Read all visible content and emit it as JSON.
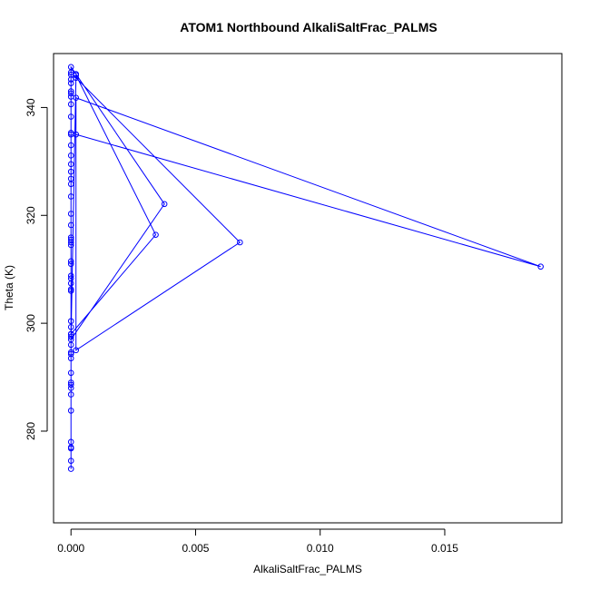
{
  "chart_data": {
    "type": "scatter",
    "title": "ATOM1 Northbound AlkaliSaltFrac_PALMS",
    "xlabel": "AlkaliSaltFrac_PALMS",
    "ylabel": "Theta (K)",
    "xlim": [
      -0.0007,
      0.0197
    ],
    "ylim": [
      263,
      350
    ],
    "x_ticks": [
      0.0,
      0.005,
      0.01,
      0.015
    ],
    "x_tick_labels": [
      "0.000",
      "0.005",
      "0.010",
      "0.015"
    ],
    "y_ticks": [
      280,
      300,
      320,
      340
    ],
    "y_tick_labels": [
      "280",
      "300",
      "320",
      "340"
    ],
    "grid": false,
    "legend": "none",
    "series": [
      {
        "color": "#0000ff",
        "marker": "open-circle",
        "line": true,
        "points": [
          [
            0,
            274.5
          ],
          [
            0,
            273.0
          ],
          [
            0,
            276.8
          ],
          [
            0,
            277.0
          ],
          [
            0,
            278.0
          ],
          [
            0,
            283.8
          ],
          [
            0,
            286.8
          ],
          [
            0,
            288.0
          ],
          [
            0,
            288.6
          ],
          [
            0,
            289.0
          ],
          [
            0,
            290.8
          ],
          [
            0,
            293.5
          ],
          [
            0,
            294.3
          ],
          [
            0,
            294.6
          ],
          [
            0,
            296.0
          ],
          [
            0,
            297.5
          ],
          [
            0,
            298.0
          ],
          [
            0,
            299.3
          ],
          [
            0,
            300.4
          ],
          [
            0,
            306.0
          ],
          [
            0,
            306.3
          ],
          [
            0,
            307.4
          ],
          [
            0,
            308.3
          ],
          [
            0,
            308.8
          ],
          [
            0,
            311.0
          ],
          [
            0,
            311.5
          ],
          [
            0,
            314.5
          ],
          [
            0,
            315.0
          ],
          [
            0,
            315.5
          ],
          [
            0,
            315.9
          ],
          [
            0,
            318.2
          ],
          [
            0,
            320.3
          ],
          [
            0,
            323.5
          ],
          [
            0,
            325.8
          ],
          [
            0,
            326.8
          ],
          [
            0,
            328.1
          ],
          [
            0,
            329.5
          ],
          [
            0,
            331.1
          ],
          [
            0,
            333.0
          ],
          [
            0,
            335.0
          ],
          [
            0,
            335.3
          ],
          [
            0,
            338.3
          ],
          [
            0,
            340.6
          ],
          [
            0,
            342.0
          ],
          [
            0,
            342.6
          ],
          [
            0,
            343.0
          ],
          [
            0,
            344.5
          ],
          [
            0,
            345.2
          ],
          [
            0,
            346.1
          ],
          [
            0,
            346.5
          ],
          [
            0,
            347.5
          ],
          [
            0.0002,
            346.2
          ],
          [
            0.00375,
            322.1
          ],
          [
            0,
            297.0
          ],
          [
            0.0002,
            346.0
          ],
          [
            0.0034,
            316.4
          ],
          [
            0,
            298.0
          ],
          [
            0.0002,
            345.5
          ],
          [
            0.00678,
            315.0
          ],
          [
            0.0002,
            295.0
          ],
          [
            0.0002,
            341.8
          ],
          [
            0.01885,
            310.5
          ],
          [
            0.0002,
            335.0
          ]
        ]
      }
    ]
  }
}
